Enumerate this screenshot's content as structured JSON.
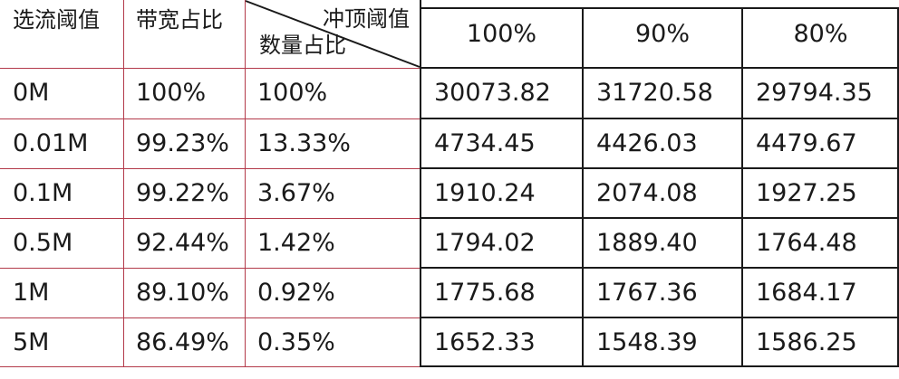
{
  "header": {
    "col1": "选流阈值",
    "col2": "带宽占比",
    "diag_top": "冲顶阈值",
    "diag_bottom": "数量占比",
    "col4": "100%",
    "col5": "90%",
    "col6": "80%"
  },
  "rows": [
    {
      "threshold": "0M",
      "bandwidth": "100%",
      "count": "100%",
      "v100": "30073.82",
      "v90": "31720.58",
      "v80": "29794.35"
    },
    {
      "threshold": "0.01M",
      "bandwidth": "99.23%",
      "count": "13.33%",
      "v100": "4734.45",
      "v90": "4426.03",
      "v80": "4479.67"
    },
    {
      "threshold": "0.1M",
      "bandwidth": "99.22%",
      "count": "3.67%",
      "v100": "1910.24",
      "v90": "2074.08",
      "v80": "1927.25"
    },
    {
      "threshold": "0.5M",
      "bandwidth": "92.44%",
      "count": "1.42%",
      "v100": "1794.02",
      "v90": "1889.40",
      "v80": "1764.48"
    },
    {
      "threshold": "1M",
      "bandwidth": "89.10%",
      "count": "0.92%",
      "v100": "1775.68",
      "v90": "1767.36",
      "v80": "1684.17"
    },
    {
      "threshold": "5M",
      "bandwidth": "86.49%",
      "count": "0.35%",
      "v100": "1652.33",
      "v90": "1548.39",
      "v80": "1586.25"
    }
  ],
  "colors": {
    "left_grid": "#b33a4a",
    "right_grid": "#1a1a1a",
    "text": "#1a1a1a"
  }
}
